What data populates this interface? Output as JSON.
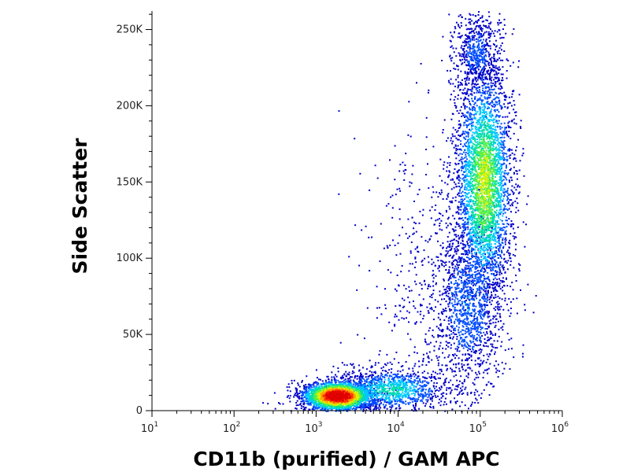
{
  "chart_data": {
    "type": "scatter",
    "title": "",
    "xlabel": "CD11b (purified) / GAM APC",
    "ylabel": "Side Scatter",
    "x_scale": "log",
    "xlim": [
      10,
      1000000
    ],
    "ylim": [
      0,
      262144
    ],
    "grid": false,
    "legend": "none",
    "x_ticks": [
      {
        "base": "10",
        "exp": "1",
        "value": 10
      },
      {
        "base": "10",
        "exp": "2",
        "value": 100
      },
      {
        "base": "10",
        "exp": "3",
        "value": 1000
      },
      {
        "base": "10",
        "exp": "4",
        "value": 10000
      },
      {
        "base": "10",
        "exp": "5",
        "value": 100000
      },
      {
        "base": "10",
        "exp": "6",
        "value": 1000000
      }
    ],
    "y_ticks": [
      {
        "label": "0",
        "value": 0
      },
      {
        "label": "50K",
        "value": 50000
      },
      {
        "label": "100K",
        "value": 100000
      },
      {
        "label": "150K",
        "value": 150000
      },
      {
        "label": "200K",
        "value": 200000
      },
      {
        "label": "250K",
        "value": 250000
      }
    ],
    "density_colormap": [
      "#0000c8",
      "#0050ff",
      "#00c8ff",
      "#00e0a0",
      "#60f040",
      "#e0f000",
      "#ffa000",
      "#ff3000",
      "#e00000"
    ],
    "populations": [
      {
        "x_center": 1800,
        "y_center": 10000,
        "x_spread_decades": 0.22,
        "y_spread": 5000,
        "count": 2600,
        "peak_density": 1.0
      },
      {
        "x_center": 8000,
        "y_center": 14000,
        "x_spread_decades": 0.35,
        "y_spread": 7000,
        "count": 1100,
        "peak_density": 0.35
      },
      {
        "x_center": 110000,
        "y_center": 150000,
        "x_spread_decades": 0.17,
        "y_spread": 38000,
        "count": 3500,
        "peak_density": 0.55
      },
      {
        "x_center": 70000,
        "y_center": 70000,
        "x_spread_decades": 0.22,
        "y_spread": 28000,
        "count": 1200,
        "peak_density": 0.2
      },
      {
        "x_center": 90000,
        "y_center": 235000,
        "x_spread_decades": 0.15,
        "y_spread": 15000,
        "count": 600,
        "peak_density": 0.15
      },
      {
        "x_center": 25000,
        "y_center": 90000,
        "x_spread_decades": 0.45,
        "y_spread": 50000,
        "count": 500,
        "peak_density": 0.05
      }
    ]
  }
}
